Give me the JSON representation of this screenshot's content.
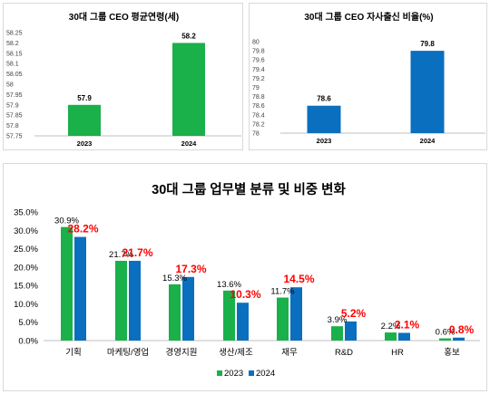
{
  "chart_data": [
    {
      "type": "bar",
      "title": "30대 그룹 CEO 평균연령(세)",
      "categories": [
        "2023",
        "2024"
      ],
      "values": [
        57.9,
        58.2
      ],
      "value_labels": [
        "57.9",
        "58.2"
      ],
      "ylim": [
        57.75,
        58.25
      ],
      "yticks": [
        "57.75",
        "57.8",
        "57.85",
        "57.9",
        "57.95",
        "58",
        "58.05",
        "58.1",
        "58.15",
        "58.2",
        "58.25"
      ],
      "colors": [
        "#1ab04a",
        "#1ab04a"
      ],
      "grid": false
    },
    {
      "type": "bar",
      "title": "30대 그룹 CEO 자사출신 비율(%)",
      "categories": [
        "2023",
        "2024"
      ],
      "values": [
        78.6,
        79.8
      ],
      "value_labels": [
        "78.6",
        "79.8"
      ],
      "ylim": [
        78,
        80
      ],
      "yticks": [
        "78",
        "78.2",
        "78.4",
        "78.6",
        "78.8",
        "79",
        "79.2",
        "79.4",
        "79.6",
        "79.8",
        "80"
      ],
      "colors": [
        "#0b6fbf",
        "#0b6fbf"
      ],
      "grid": false
    },
    {
      "type": "bar",
      "title": "30대 그룹 업무별 분류 및 비중 변화",
      "categories": [
        "기획",
        "마케팅/영업",
        "경영지원",
        "생산/제조",
        "재무",
        "R&D",
        "HR",
        "홍보"
      ],
      "series": [
        {
          "name": "2023",
          "color": "#1ab04a",
          "values": [
            30.9,
            21.7,
            15.3,
            13.6,
            11.7,
            3.9,
            2.2,
            0.6
          ],
          "labels": [
            "30.9%",
            "21.7%",
            "15.3%",
            "13.6%",
            "11.7%",
            "3.9%",
            "2.2%",
            "0.6%"
          ]
        },
        {
          "name": "2024",
          "color": "#0b6fbf",
          "values": [
            28.2,
            21.7,
            17.3,
            10.3,
            14.5,
            5.2,
            2.1,
            0.8
          ],
          "labels": [
            "28.2%",
            "21.7%",
            "17.3%",
            "10.3%",
            "14.5%",
            "5.2%",
            "2.1%",
            "0.8%"
          ]
        }
      ],
      "ylim": [
        0,
        35
      ],
      "yticks": [
        "0.0%",
        "5.0%",
        "10.0%",
        "15.0%",
        "20.0%",
        "25.0%",
        "30.0%",
        "35.0%"
      ],
      "legend": "bottom",
      "grid": false
    }
  ]
}
